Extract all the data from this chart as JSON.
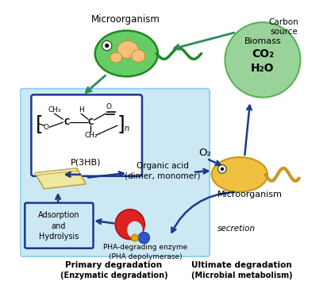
{
  "bg_color": "#ffffff",
  "light_blue_bg": "#cce8f4",
  "light_blue_edge": "#88ccee",
  "title_primary": "Primary degradation",
  "title_primary_sub": "(Enzymatic degradation)",
  "title_ultimate": "Ultimate degradation",
  "title_ultimate_sub": "(Microbial metabolism)",
  "biomass_text": "Biomass",
  "co2_text": "CO₂",
  "h2o_text": "H₂O",
  "o2_text": "O₂",
  "microorganism_top": "Microorganism",
  "microorganism_right": "Microorganism",
  "carbon_source": "Carbon\nsource",
  "organic_acid": "Organic acid\n(dimer, monomer)",
  "adsorption": "Adsorption\nand\nHydrolysis",
  "pha_enzyme": "PHA-degrading enzyme\n(PHA depolymerase)",
  "secretion": "secretion",
  "p3hb": "P(3HB)",
  "arrow_color": "#1a3a8a",
  "green_arrow_color": "#2e8b57",
  "box_border": "#1a3a8a",
  "biomass_circle_color": "#88cc88",
  "green_microbe_color": "#55bb55",
  "yellow_microbe_color": "#f0c040",
  "p3hb_box_bg": "#ffffff",
  "adsorption_box_bg": "#cce8f4",
  "figw": 4.12,
  "figh": 3.64,
  "dpi": 100
}
